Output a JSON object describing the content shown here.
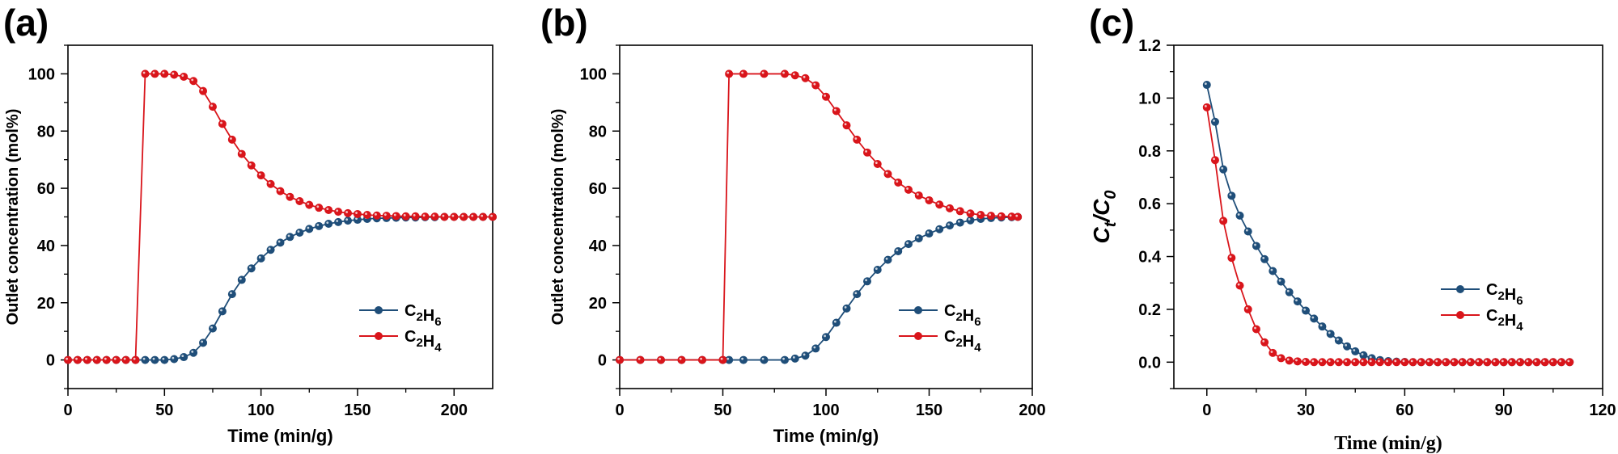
{
  "colors": {
    "c2h6": "#1f4e79",
    "c2h4": "#d9151b",
    "axis": "#000000"
  },
  "chart_data": [
    {
      "panel": "(a)",
      "type": "line",
      "xlabel": "Time (min/g)",
      "ylabel": "Outlet concentration (mol%)",
      "xlim": [
        0,
        220
      ],
      "ylim": [
        -10,
        110
      ],
      "xticks": [
        0,
        50,
        100,
        150,
        200
      ],
      "yticks": [
        0,
        20,
        40,
        60,
        80,
        100
      ],
      "legend_position": "center-right",
      "series": [
        {
          "name": "C₂H₆",
          "color_key": "c2h6",
          "x": [
            0,
            5,
            10,
            15,
            20,
            25,
            30,
            35,
            40,
            45,
            50,
            55,
            60,
            65,
            70,
            75,
            80,
            85,
            90,
            95,
            100,
            105,
            110,
            115,
            120,
            125,
            130,
            135,
            140,
            145,
            150,
            155,
            160,
            165,
            170,
            175,
            180,
            185,
            190,
            195,
            200,
            205,
            210,
            215,
            220
          ],
          "y": [
            0,
            0,
            0,
            0,
            0,
            0,
            0,
            0,
            0,
            0,
            0,
            0.3,
            1,
            2.5,
            6,
            11,
            17,
            23,
            28,
            32,
            35.5,
            38.5,
            41,
            43,
            44.5,
            45.8,
            46.8,
            47.6,
            48.2,
            48.7,
            49,
            49.3,
            49.5,
            49.6,
            49.7,
            49.8,
            49.8,
            49.9,
            49.9,
            50,
            50,
            50,
            50,
            50,
            50
          ]
        },
        {
          "name": "C₂H₄",
          "color_key": "c2h4",
          "x": [
            0,
            5,
            10,
            15,
            20,
            25,
            30,
            35,
            40,
            45,
            50,
            55,
            60,
            65,
            70,
            75,
            80,
            85,
            90,
            95,
            100,
            105,
            110,
            115,
            120,
            125,
            130,
            135,
            140,
            145,
            150,
            155,
            160,
            165,
            170,
            175,
            180,
            185,
            190,
            195,
            200,
            205,
            210,
            215,
            220
          ],
          "y": [
            0,
            0,
            0,
            0,
            0,
            0,
            0,
            0,
            100,
            100,
            100,
            99.7,
            99,
            97.5,
            94,
            88.5,
            82.5,
            77,
            72,
            68,
            64.5,
            61.5,
            59,
            57,
            55.5,
            54.2,
            53.2,
            52.4,
            51.8,
            51.3,
            51,
            50.7,
            50.5,
            50.4,
            50.3,
            50.2,
            50.2,
            50.1,
            50.1,
            50,
            50,
            50,
            50,
            50,
            50
          ]
        }
      ]
    },
    {
      "panel": "(b)",
      "type": "line",
      "xlabel": "Time (min/g)",
      "ylabel": "Outlet concentration (mol%)",
      "xlim": [
        0,
        200
      ],
      "ylim": [
        -10,
        110
      ],
      "xticks": [
        0,
        50,
        100,
        150,
        200
      ],
      "yticks": [
        0,
        20,
        40,
        60,
        80,
        100
      ],
      "legend_position": "center-right",
      "series": [
        {
          "name": "C₂H₆",
          "color_key": "c2h6",
          "x": [
            0,
            10,
            20,
            30,
            40,
            50,
            53,
            60,
            70,
            80,
            85,
            90,
            95,
            100,
            105,
            110,
            115,
            120,
            125,
            130,
            135,
            140,
            145,
            150,
            155,
            160,
            165,
            170,
            175,
            180,
            185,
            190,
            193
          ],
          "y": [
            0,
            0,
            0,
            0,
            0,
            0,
            0,
            0,
            0,
            0,
            0.5,
            1.5,
            4,
            8,
            13,
            18,
            23,
            27.5,
            31.5,
            35,
            38,
            40.5,
            42.5,
            44.2,
            45.7,
            47,
            48,
            48.8,
            49.3,
            49.6,
            49.8,
            49.9,
            50
          ]
        },
        {
          "name": "C₂H₄",
          "color_key": "c2h4",
          "x": [
            0,
            10,
            20,
            30,
            40,
            50,
            53,
            60,
            70,
            80,
            85,
            90,
            95,
            100,
            105,
            110,
            115,
            120,
            125,
            130,
            135,
            140,
            145,
            150,
            155,
            160,
            165,
            170,
            175,
            180,
            185,
            190,
            193
          ],
          "y": [
            0,
            0,
            0,
            0,
            0,
            0,
            100,
            100,
            100,
            100,
            99.5,
            98.5,
            96,
            92,
            87,
            82,
            77,
            72.5,
            68.5,
            65,
            62,
            59.5,
            57.5,
            55.8,
            54.3,
            53,
            52,
            51.2,
            50.7,
            50.4,
            50.2,
            50.1,
            50
          ]
        }
      ]
    },
    {
      "panel": "(c)",
      "type": "line",
      "xlabel": "Time (min/g)",
      "ylabel": "Ct/C0",
      "xlim": [
        -10,
        120
      ],
      "ylim": [
        -0.1,
        1.2
      ],
      "xticks": [
        0,
        30,
        60,
        90,
        120
      ],
      "yticks": [
        0.0,
        0.2,
        0.4,
        0.6,
        0.8,
        1.0,
        1.2
      ],
      "legend_position": "center-right",
      "series": [
        {
          "name": "C₂H₆",
          "color_key": "c2h6",
          "x": [
            0,
            2.5,
            5,
            7.5,
            10,
            12.5,
            15,
            17.5,
            20,
            22.5,
            25,
            27.5,
            30,
            32.5,
            35,
            37.5,
            40,
            42.5,
            45,
            47.5,
            50,
            52.5,
            55,
            57.5,
            60,
            62.5,
            65,
            67.5,
            70,
            72.5,
            75,
            77.5,
            80,
            82.5,
            85,
            87.5,
            90,
            92.5,
            95,
            97.5,
            100,
            102.5,
            105,
            107.5,
            110
          ],
          "y": [
            1.05,
            0.91,
            0.73,
            0.63,
            0.555,
            0.495,
            0.44,
            0.39,
            0.345,
            0.305,
            0.265,
            0.23,
            0.195,
            0.165,
            0.135,
            0.107,
            0.082,
            0.06,
            0.041,
            0.026,
            0.015,
            0.008,
            0.004,
            0.002,
            0.001,
            0,
            0,
            0,
            0,
            0,
            0,
            0,
            0,
            0,
            0,
            0,
            0,
            0,
            0,
            0,
            0,
            0,
            0,
            0,
            0
          ]
        },
        {
          "name": "C₂H₄",
          "color_key": "c2h4",
          "x": [
            0,
            2.5,
            5,
            7.5,
            10,
            12.5,
            15,
            17.5,
            20,
            22.5,
            25,
            27.5,
            30,
            32.5,
            35,
            37.5,
            40,
            42.5,
            45,
            47.5,
            50,
            52.5,
            55,
            57.5,
            60,
            62.5,
            65,
            67.5,
            70,
            72.5,
            75,
            77.5,
            80,
            82.5,
            85,
            87.5,
            90,
            92.5,
            95,
            97.5,
            100,
            102.5,
            105,
            107.5,
            110
          ],
          "y": [
            0.965,
            0.765,
            0.535,
            0.395,
            0.29,
            0.2,
            0.125,
            0.075,
            0.035,
            0.015,
            0.006,
            0.003,
            0.001,
            0,
            0,
            0,
            0,
            0,
            0,
            0,
            0,
            0,
            0,
            0,
            0,
            0,
            0,
            0,
            0,
            0,
            0,
            0,
            0,
            0,
            0,
            0,
            0,
            0,
            0,
            0,
            0,
            0,
            0,
            0,
            0
          ]
        }
      ]
    }
  ]
}
